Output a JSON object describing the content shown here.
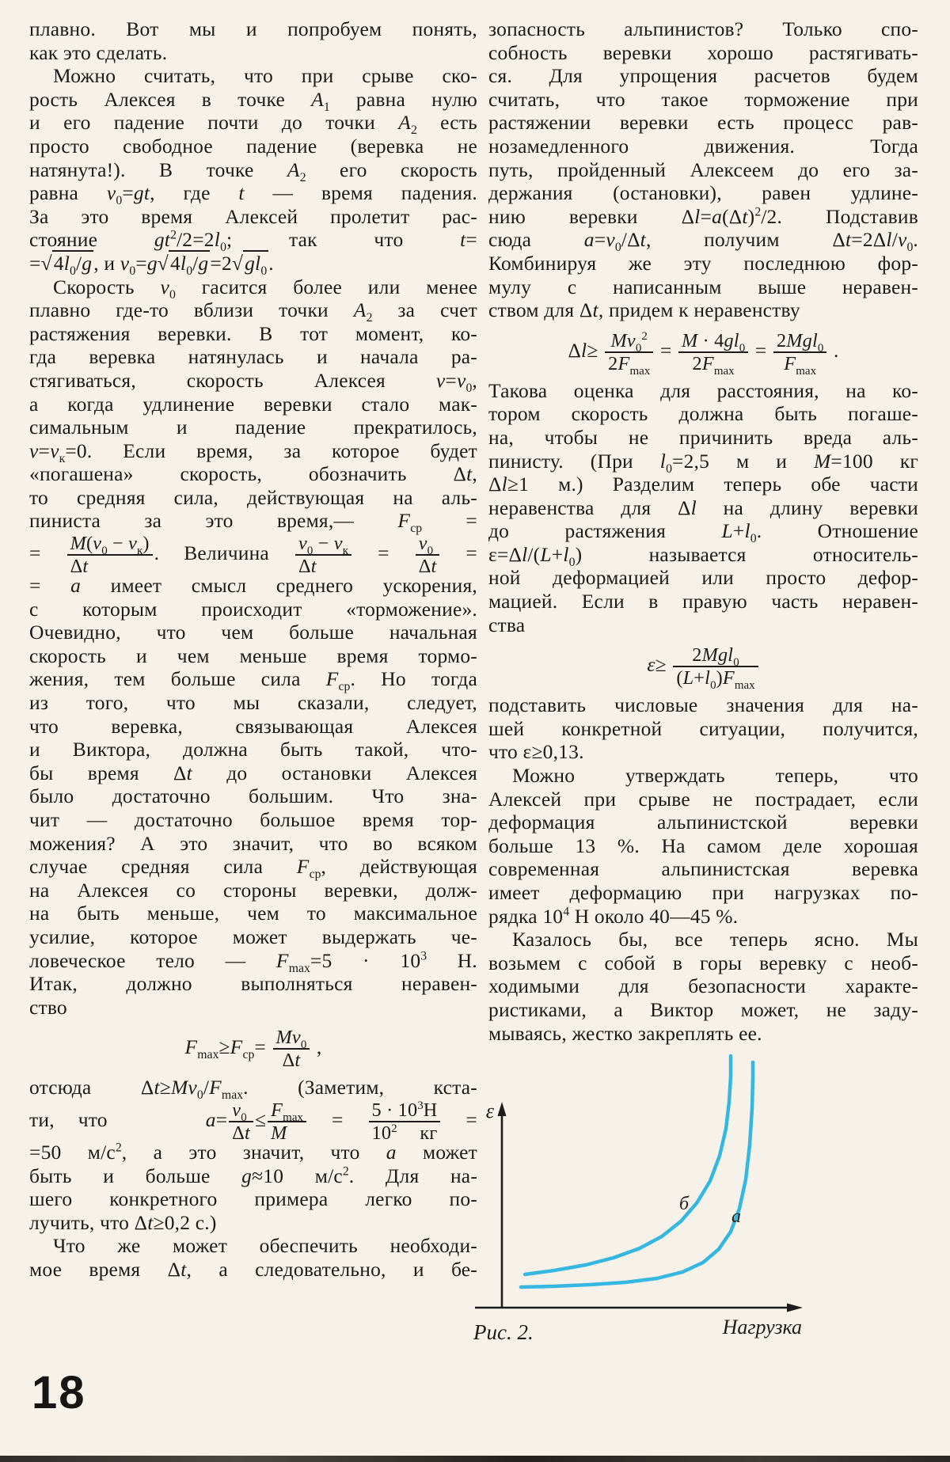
{
  "page": {
    "number": "18"
  },
  "left_column": {
    "lines": [
      {
        "t": "плавно. Вот мы и попробуем понять,"
      },
      {
        "t": "как это сделать.",
        "c": "last"
      },
      {
        "t": "Можно считать, что при срыве ско-",
        "c": "first"
      },
      {
        "t": "рость Алексея в точке <i>A</i><sub>1</sub> равна нулю"
      },
      {
        "t": "и его падение почти до точки <i>A</i><sub>2</sub> есть"
      },
      {
        "t": "просто свободное падение (веревка не"
      },
      {
        "t": "натянута!). В точке <i>A</i><sub>2</sub> его скорость"
      },
      {
        "t": "равна <i>v</i><sub>0</sub>=<i>gt</i>, где <i>t</i> — время падения."
      },
      {
        "t": "За это время Алексей пролетит рас-"
      },
      {
        "t": "стояние <i>gt</i><sup>2</sup>/2=2<i>l</i><sub>0</sub>; так что <i>t</i>="
      },
      {
        "t": "=<span class='sq'>√<span class='ov'>4<i>l</i><sub>0</sub>/<i>g</i></span></span>, и <i>v</i><sub>0</sub>=<i>g</i><span class='sq'>√<span class='ov'>4<i>l</i><sub>0</sub>/<i>g</i></span></span>=2<span class='sq'>√<span class='ov'><i>gl</i><sub>0</sub></span></span>.",
        "c": "last"
      },
      {
        "t": "Скорость <i>v</i><sub>0</sub> гасится более или менее",
        "c": "first"
      },
      {
        "t": "плавно где-то вблизи точки <i>A</i><sub>2</sub> за счет"
      },
      {
        "t": "растяжения веревки. В тот момент, ко-"
      },
      {
        "t": "гда веревка натянулась и начала ра-"
      },
      {
        "t": "стягиваться, скорость Алексея <i>v</i>=<i>v</i><sub>0</sub>,"
      },
      {
        "t": "а когда удлинение веревки стало мак-"
      },
      {
        "t": "симальным и падение прекратилось,"
      },
      {
        "t": "<i>v</i>=<i>v</i><sub>к</sub>=0. Если время, за которое будет"
      },
      {
        "t": "«погашена» скорость, обозначить Δ<i>t</i>,"
      },
      {
        "t": "то средняя сила, действующая на аль-"
      },
      {
        "t": "пиниста за это время,— <i>F</i><sub>ср</sub> ="
      },
      {
        "t": "= <span class='frac'><span class='fn'><i>M</i>(<i>v</i><sub>0</sub> − <i>v</i><sub>к</sub>)</span><span class='fd'>Δ<i>t</i></span></span>. Величина <span class='frac'><span class='fn'><i>v</i><sub>0</sub> − <i>v</i><sub>к</sub></span><span class='fd'>Δ<i>t</i></span></span> = <span class='frac'><span class='fn'><i>v</i><sub>0</sub></span><span class='fd'>Δ<i>t</i></span></span> =",
        "c": "tall"
      },
      {
        "t": "= <i>a</i> имеет смысл среднего ускорения,"
      },
      {
        "t": "с которым происходит «торможение»."
      },
      {
        "t": "Очевидно, что чем больше начальная"
      },
      {
        "t": "скорость и чем меньше время тормо-"
      },
      {
        "t": "жения, тем больше сила <i>F</i><sub>ср</sub>. Но тогда"
      },
      {
        "t": "из того, что мы сказали, следует,"
      },
      {
        "t": "что веревка, связывающая Алексея"
      },
      {
        "t": "и Виктора, должна быть такой, что-"
      },
      {
        "t": "бы время Δ<i>t</i> до остановки Алексея"
      },
      {
        "t": "было достаточно большим. Что зна-"
      },
      {
        "t": "чит — достаточно большое время тор-"
      },
      {
        "t": "можения? А это значит, что во всяком"
      },
      {
        "t": "случае средняя сила <i>F</i><sub>ср</sub>, действующая"
      },
      {
        "t": "на Алексея со стороны веревки, долж-"
      },
      {
        "t": "на быть меньше, чем то максимальное"
      },
      {
        "t": "усилие, которое может выдержать че-"
      },
      {
        "t": "ловеческое тело — <i>F</i><sub>max</sub>=5 · 10<sup>3</sup> Н."
      },
      {
        "t": "Итак, должно выполняться неравен-"
      },
      {
        "t": "ство",
        "c": "last"
      },
      {
        "t": "<i>F</i><sub>max</sub>≥<i>F</i><sub>ср</sub>= <span class='frac'><span class='fn'><i>Mv</i><sub>0</sub></span><span class='fd'>Δ<i>t</i></span></span> ,",
        "c": "disp"
      },
      {
        "t": "отсюда Δ<i>t</i>≥<i>Mv</i><sub>0</sub>/<i>F</i><sub>max</sub>. (Заметим, кста-"
      },
      {
        "t": "ти, что <span class='gap'></span> <i>a</i>=<span class='frac'><span class='fn'><i>v</i><sub>0</sub></span><span class='fd'>Δ<i>t</i></span></span>≤<span class='frac'><span class='fn'><i>F</i><sub>max</sub></span><span class='fd'><i>M</i></span></span> = <span class='frac'><span class='fn'>5 · 10<sup>3</sup>Н</span><span class='fd'>10<sup>2</sup> кг</span></span> =",
        "c": "tall"
      },
      {
        "t": "=50 м/с<sup>2</sup>, а это значит, что <i>a</i> может"
      },
      {
        "t": "быть и больше <i>g</i>≈10 м/с<sup>2</sup>. Для на-"
      },
      {
        "t": "шего конкретного примера легко по-"
      },
      {
        "t": "лучить, что Δ<i>t</i>≥0,2 с.)",
        "c": "last"
      },
      {
        "t": "Что же может обеспечить необходи-",
        "c": "first"
      },
      {
        "t": "мое время Δ<i>t</i>, а следовательно, и бе-"
      }
    ]
  },
  "right_column": {
    "lines": [
      {
        "t": "зопасность альпинистов? Только спо-"
      },
      {
        "t": "собность веревки хорошо растягивать-"
      },
      {
        "t": "ся. Для упрощения расчетов будем"
      },
      {
        "t": "считать, что такое торможение при"
      },
      {
        "t": "растяжении веревки есть процесс рав-"
      },
      {
        "t": "нозамедленного движения. Тогда"
      },
      {
        "t": "путь, пройденный Алексеем до его за-"
      },
      {
        "t": "держания (остановки), равен удлине-"
      },
      {
        "t": "нию веревки Δ<i>l</i>=<i>a</i>(Δ<i>t</i>)<sup>2</sup>/2. Подставив"
      },
      {
        "t": "сюда <i>a</i>=<i>v</i><sub>0</sub>/Δ<i>t</i>, получим Δ<i>t</i>=2Δ<i>l</i>/<i>v</i><sub>0</sub>."
      },
      {
        "t": "Комбинируя же эту последнюю фор-"
      },
      {
        "t": "мулу с написанным выше неравен-"
      },
      {
        "t": "ством для Δ<i>t</i>, придем к неравенству",
        "c": "last"
      },
      {
        "t": "Δ<i>l</i>≥ <span class='frac'><span class='fn'><i>Mv</i><sub>0</sub><sup>2</sup></span><span class='fd'>2<i>F</i><sub>max</sub></span></span> = <span class='frac'><span class='fn'><i>M</i> · 4<i>gl</i><sub>0</sub></span><span class='fd'>2<i>F</i><sub>max</sub></span></span> = <span class='frac'><span class='fn'>2<i>Mgl</i><sub>0</sub></span><span class='fd'><i>F</i><sub>max</sub></span></span> .",
        "c": "disp"
      },
      {
        "t": "Такова оценка для расстояния, на ко-"
      },
      {
        "t": "тором скорость должна быть погаше-"
      },
      {
        "t": "на, чтобы не причинить вреда аль-"
      },
      {
        "t": "пинисту. (При <i>l</i><sub>0</sub>=2,5 м и <i>M</i>=100 кг"
      },
      {
        "t": "Δ<i>l</i>≥1 м.) Разделим теперь обе части"
      },
      {
        "t": "неравенства для Δ<i>l</i> на длину веревки"
      },
      {
        "t": "до растяжения <i>L</i>+<i>l</i><sub>0</sub>. Отношение"
      },
      {
        "t": "ε=Δ<i>l</i>/(<i>L</i>+<i>l</i><sub>0</sub>) называется относитель-"
      },
      {
        "t": "ной деформацией или просто дефор-"
      },
      {
        "t": "мацией. Если в правую часть неравен-"
      },
      {
        "t": "ства",
        "c": "last"
      },
      {
        "t": "<i>ε</i>≥ <span class='frac'><span class='fn'>2<i>Mgl</i><sub>0</sub></span><span class='fd'>(<i>L</i>+<i>l</i><sub>0</sub>)<i>F</i><sub>max</sub></span></span>",
        "c": "disp"
      },
      {
        "t": "подставить числовые значения для на-"
      },
      {
        "t": "шей конкретной ситуации, получится,"
      },
      {
        "t": "что ε≥0,13.",
        "c": "last"
      },
      {
        "t": "Можно утверждать теперь, что",
        "c": "first"
      },
      {
        "t": "Алексей при срыве не пострадает, если"
      },
      {
        "t": "деформация альпинистской веревки"
      },
      {
        "t": "больше 13 %. На самом деле хорошая"
      },
      {
        "t": "современная альпинистская веревка"
      },
      {
        "t": "имеет деформацию при нагрузках по-"
      },
      {
        "t": "рядка 10<sup>4</sup> Н около 40—45 %.",
        "c": "last"
      },
      {
        "t": "Казалось бы, все теперь ясно. Мы",
        "c": "first"
      },
      {
        "t": "возьмем с собой в горы веревку с необ-"
      },
      {
        "t": "ходимыми для безопасности характе-"
      },
      {
        "t": "ристиками, а Виктор может, не заду-"
      },
      {
        "t": "мываясь, жестко закреплять ее.",
        "c": "last"
      }
    ]
  },
  "figure": {
    "caption": "Рис. 2.",
    "y_axis_label": "ε",
    "x_axis_label": "Нагрузка"
  },
  "chart_data": {
    "type": "line",
    "title": "Рис. 2.",
    "xlabel": "Нагрузка",
    "ylabel": "ε",
    "axes": "qualitative sketch, no tick marks or numeric scales; both axes drawn as arrows from origin",
    "legend_position": "labels on curves",
    "description": "Deformation ε of a climbing rope versus load: curve б (upper, rises earlier) and curve a (lower, flat then steep rise).",
    "color": "#35b7e2",
    "series": [
      {
        "name": "б",
        "color": "#35b7e2",
        "label_xy": [
          268,
          212
        ],
        "points": [
          [
            67,
            294
          ],
          [
            104,
            289
          ],
          [
            144,
            282
          ],
          [
            179,
            273
          ],
          [
            212,
            261
          ],
          [
            240,
            246
          ],
          [
            264,
            227
          ],
          [
            284,
            204
          ],
          [
            301,
            176
          ],
          [
            313,
            144
          ],
          [
            321,
            110
          ],
          [
            325,
            76
          ],
          [
            327,
            44
          ],
          [
            327,
            18
          ]
        ]
      },
      {
        "name": "a",
        "color": "#35b7e2",
        "label_xy": [
          334,
          228
        ],
        "points": [
          [
            62,
            310
          ],
          [
            104,
            309
          ],
          [
            149,
            307
          ],
          [
            194,
            304
          ],
          [
            234,
            299
          ],
          [
            266,
            291
          ],
          [
            292,
            279
          ],
          [
            312,
            262
          ],
          [
            327,
            240
          ],
          [
            338,
            211
          ],
          [
            346,
            174
          ],
          [
            351,
            130
          ],
          [
            354,
            84
          ],
          [
            355,
            44
          ],
          [
            355,
            26
          ]
        ]
      }
    ]
  }
}
